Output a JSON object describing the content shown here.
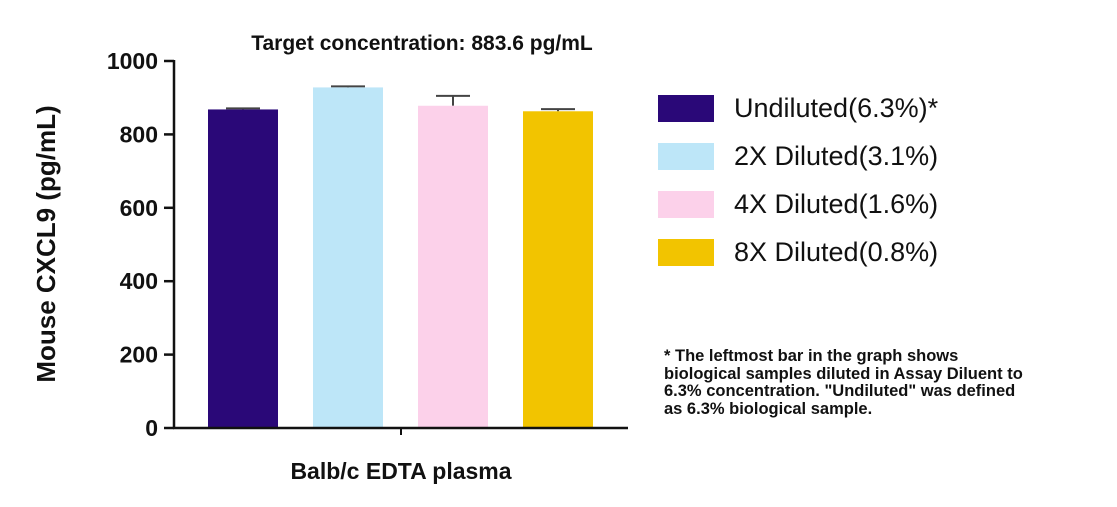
{
  "chart_data": {
    "type": "bar",
    "title": "Target concentration: 883.6 pg/mL",
    "xlabel": "Balb/c EDTA plasma",
    "ylabel": "Mouse CXCL9 (pg/mL)",
    "ylim": [
      0,
      1000
    ],
    "yticks": [
      "0",
      "200",
      "400",
      "600",
      "800",
      "1000"
    ],
    "ytick_values": [
      0,
      200,
      400,
      600,
      800,
      1000
    ],
    "grid": false,
    "legend_position": "right",
    "series": [
      {
        "name": "Undiluted(6.3%)*",
        "value": 868,
        "error": 3,
        "color": "#2a0878"
      },
      {
        "name": "2X Diluted(3.1%)",
        "value": 928,
        "error": 3,
        "color": "#bde6f8"
      },
      {
        "name": "4X Diluted(1.6%)",
        "value": 878,
        "error": 27,
        "color": "#fcd1ea"
      },
      {
        "name": "8X Diluted(0.8%)",
        "value": 863,
        "error": 6,
        "color": "#f2c400"
      }
    ]
  },
  "footnote": [
    "* The leftmost bar in the graph shows",
    "biological samples diluted in Assay Diluent to",
    "6.3% concentration. \"Undiluted\" was defined",
    "as 6.3% biological sample."
  ]
}
